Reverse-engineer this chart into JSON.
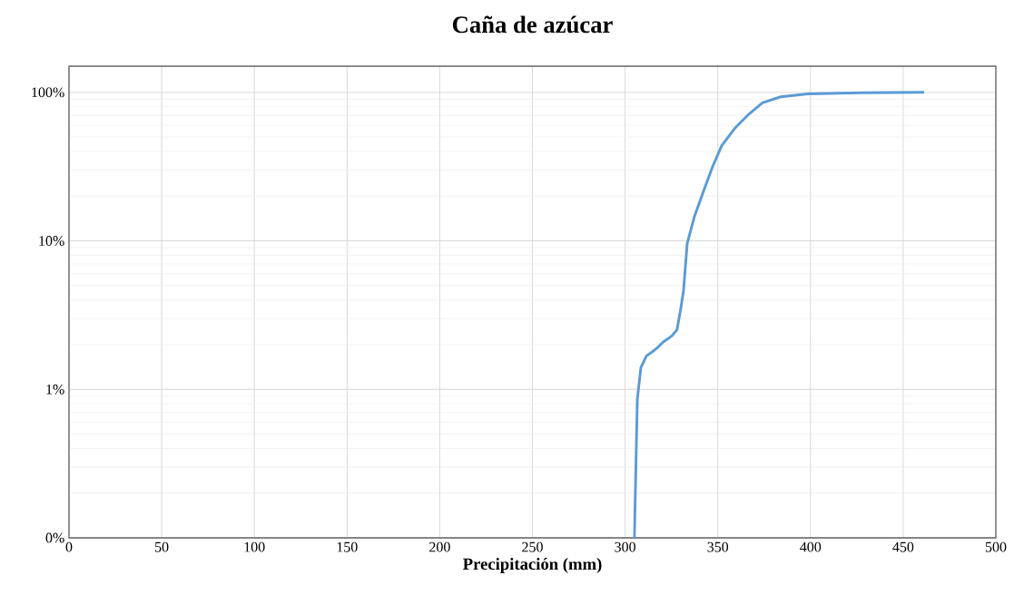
{
  "chart_data": {
    "type": "line",
    "title": "Caña de azúcar",
    "xlabel": "Precipitación (mm)",
    "x": [
      305,
      306.6,
      308.5,
      311.5,
      314.4,
      317.3,
      320.3,
      325.2,
      328,
      330,
      331.5,
      333.5,
      337.4,
      342.3,
      347.2,
      352.1,
      359.4,
      366.8,
      374.1,
      383.9,
      398.6,
      428,
      461.3
    ],
    "series": [
      {
        "color": "#5b9bd5",
        "values": [
          0.1,
          0.86,
          1.4,
          1.68,
          1.78,
          1.9,
          2.07,
          2.29,
          2.52,
          3.49,
          4.6,
          9.6,
          14.6,
          21.6,
          31.6,
          43.7,
          57.7,
          71.4,
          85,
          93.3,
          97.6,
          99.4,
          100
        ]
      }
    ],
    "log": "y",
    "grid": true,
    "marker": "none",
    "line_style": "solid",
    "xlim": [
      0,
      500
    ],
    "xticks": [
      0,
      50,
      100,
      150,
      200,
      250,
      300,
      350,
      400,
      450,
      500
    ],
    "ylim": [
      0.1,
      150
    ],
    "yticks": [
      {
        "value": 0.1,
        "label": "0%"
      },
      {
        "value": 1,
        "label": "1%"
      },
      {
        "value": 10,
        "label": "10%"
      },
      {
        "value": 100,
        "label": "100%"
      }
    ]
  }
}
